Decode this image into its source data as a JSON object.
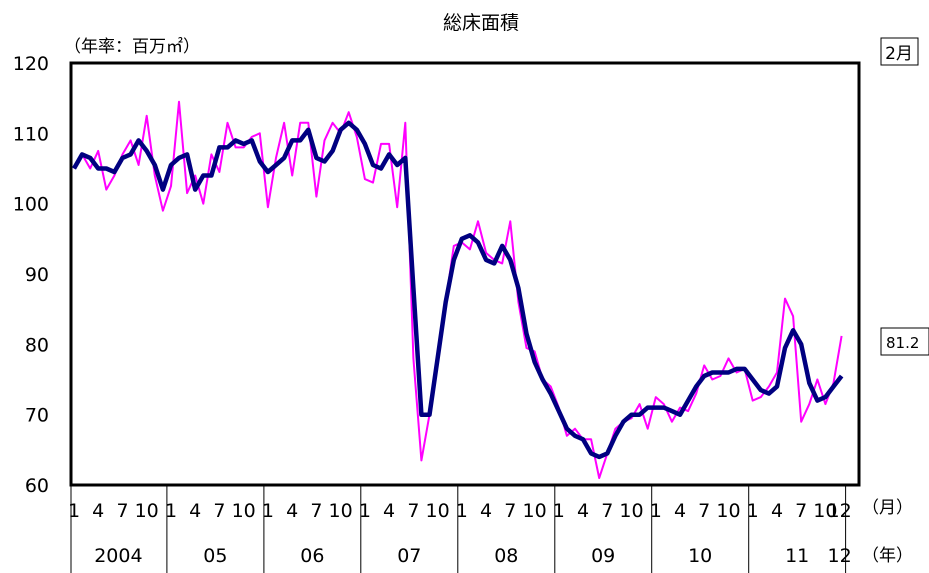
{
  "chart_data": {
    "type": "line",
    "title": "総床面積",
    "unit_label": "（年率：百万㎡）",
    "ylim": [
      60,
      120
    ],
    "y_ticks": [
      60,
      70,
      80,
      90,
      100,
      110,
      120
    ],
    "x_month_labels": [
      "1",
      "4",
      "7",
      "10"
    ],
    "x_month_axis_label": "（月）",
    "x_year_axis_label": "（年）",
    "years": [
      "2004",
      "05",
      "06",
      "07",
      "08",
      "09",
      "10",
      "11",
      "12"
    ],
    "last_month_label": "12",
    "period_box": "2月",
    "latest_value_box": "81.2",
    "grid": false,
    "legend": "none",
    "series": [
      {
        "key": "monthly",
        "color": "#ff00ff",
        "values": [
          105.0,
          107.0,
          105.0,
          107.5,
          102.0,
          104.0,
          107.0,
          109.0,
          105.5,
          112.5,
          104.0,
          99.0,
          102.5,
          114.5,
          101.5,
          104.0,
          100.0,
          107.0,
          104.5,
          111.5,
          108.0,
          108.0,
          109.5,
          110.0,
          99.5,
          106.5,
          111.5,
          104.0,
          111.5,
          111.5,
          101.0,
          109.0,
          111.5,
          110.0,
          113.0,
          109.5,
          103.5,
          103.0,
          108.5,
          108.5,
          99.5,
          111.5,
          78.0,
          63.5,
          70.0,
          78.0,
          86.0,
          94.0,
          94.5,
          93.5,
          97.5,
          93.0,
          92.0,
          91.5,
          97.5,
          86.0,
          79.5,
          79.0,
          75.0,
          74.0,
          71.0,
          67.0,
          68.0,
          66.5,
          66.5,
          61.0,
          64.5,
          68.0,
          69.0,
          69.5,
          71.5,
          68.0,
          72.5,
          71.5,
          69.0,
          71.0,
          70.5,
          73.0,
          77.0,
          75.0,
          75.5,
          78.0,
          76.0,
          76.5,
          72.0,
          72.5,
          74.0,
          76.0,
          86.5,
          84.0,
          69.0,
          71.5,
          75.0,
          71.5,
          74.5,
          81.2
        ]
      },
      {
        "key": "moving_average",
        "color": "#000080",
        "values": [
          105.0,
          107.0,
          106.5,
          105.0,
          105.0,
          104.5,
          106.5,
          107.0,
          109.0,
          107.5,
          105.5,
          102.0,
          105.5,
          106.5,
          107.0,
          102.0,
          104.0,
          104.0,
          108.0,
          108.0,
          109.0,
          108.5,
          109.0,
          106.0,
          104.5,
          105.5,
          106.5,
          109.0,
          109.0,
          110.5,
          106.5,
          106.0,
          107.5,
          110.5,
          111.5,
          110.5,
          108.5,
          105.5,
          105.0,
          107.0,
          105.5,
          106.5,
          88.0,
          70.0,
          70.0,
          78.0,
          86.0,
          92.0,
          95.0,
          95.5,
          94.5,
          92.0,
          91.5,
          94.0,
          92.0,
          88.0,
          81.5,
          77.5,
          75.0,
          73.0,
          70.5,
          68.0,
          67.0,
          66.5,
          64.5,
          64.0,
          64.5,
          67.0,
          69.0,
          70.0,
          70.0,
          71.0,
          71.0,
          71.0,
          70.5,
          70.0,
          72.0,
          74.0,
          75.5,
          76.0,
          76.0,
          76.0,
          76.5,
          76.5,
          75.0,
          73.5,
          73.0,
          74.0,
          79.5,
          82.0,
          80.0,
          74.5,
          72.0,
          72.5,
          74.0,
          75.5
        ]
      }
    ]
  }
}
